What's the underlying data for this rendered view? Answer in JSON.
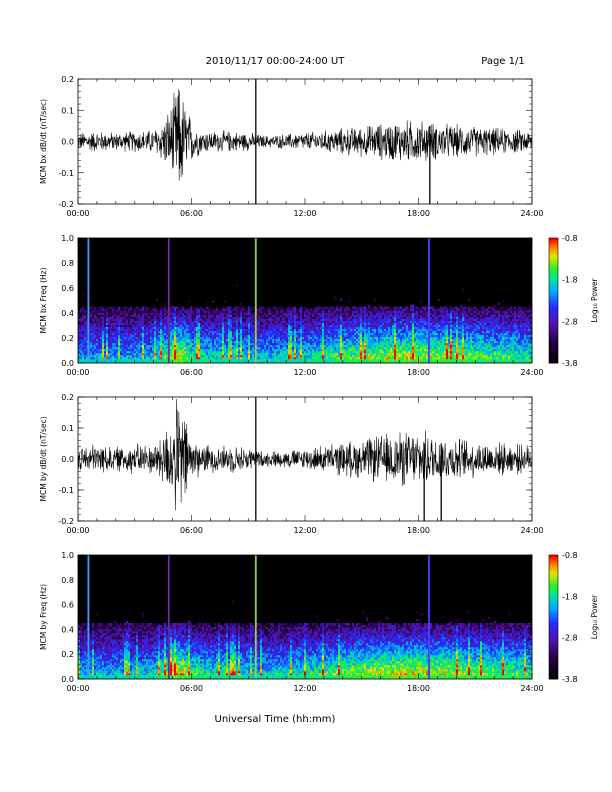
{
  "header": {
    "title": "2010/11/17  00:00-24:00 UT",
    "page": "Page 1/1"
  },
  "chart_data": [
    {
      "type": "line",
      "panel": "bx-waveform",
      "ylabel": "MCM bx dB/dt (nT/sec)",
      "ylim": [
        -0.2,
        0.2
      ],
      "y_ticks": [
        "0.2",
        "0.1",
        "0.0",
        "-0.1",
        "-0.2"
      ],
      "x_ticks": [
        "00:00",
        "06:00",
        "12:00",
        "18:00",
        "24:00"
      ],
      "xlim_hours": [
        0,
        24
      ],
      "series": [
        {
          "hour": [
            0,
            1,
            2,
            3,
            4,
            4.5,
            5,
            5.3,
            5.5,
            6,
            6.5,
            7,
            8,
            9,
            9.4,
            10,
            11,
            12,
            13,
            14,
            15,
            16,
            17,
            18,
            18.5,
            19,
            20,
            21,
            22,
            23,
            24
          ],
          "amplitude": [
            0.03,
            0.035,
            0.03,
            0.035,
            0.04,
            0.07,
            0.13,
            0.2,
            0.16,
            0.07,
            0.04,
            0.035,
            0.035,
            0.03,
            0.025,
            0.02,
            0.025,
            0.03,
            0.035,
            0.045,
            0.05,
            0.06,
            0.07,
            0.07,
            0.065,
            0.06,
            0.055,
            0.05,
            0.045,
            0.04,
            0.035
          ]
        }
      ],
      "spikes": [
        {
          "hour": 9.4,
          "min": -0.2,
          "max": 0.2
        },
        {
          "hour": 18.6,
          "min": -0.2,
          "max": 0.05
        }
      ]
    },
    {
      "type": "heatmap",
      "panel": "bx-spectrogram",
      "ylabel": "MCM bx Freq (Hz)",
      "ylim": [
        0,
        1.0
      ],
      "y_ticks": [
        "1.0",
        "0.8",
        "0.6",
        "0.4",
        "0.2",
        "0.0"
      ],
      "x_ticks": [
        "00:00",
        "06:00",
        "12:00",
        "18:00",
        "24:00"
      ],
      "colorbar": {
        "label": "Log₁₀ Power",
        "ticks": [
          "-0.8",
          "-1.8",
          "-2.8",
          "-3.8"
        ],
        "range": [
          -3.8,
          -0.8
        ]
      },
      "activity_hours": [
        0,
        2,
        4,
        4.5,
        5,
        5.5,
        6,
        7,
        8,
        9,
        10,
        11,
        12,
        13,
        14,
        15,
        16,
        17,
        18,
        19,
        20,
        21,
        22,
        23,
        24
      ],
      "activity_level": [
        0.2,
        0.2,
        0.3,
        0.5,
        0.8,
        0.9,
        0.5,
        0.4,
        0.4,
        0.3,
        0.3,
        0.35,
        0.4,
        0.5,
        0.6,
        0.7,
        0.75,
        0.8,
        0.8,
        0.75,
        0.7,
        0.65,
        0.6,
        0.55,
        0.5
      ],
      "vertical_lines": [
        {
          "hour": 0.55,
          "color": "#3aa0ff",
          "top": 1.0
        },
        {
          "hour": 4.8,
          "color": "#6a2aa0",
          "top": 1.0
        },
        {
          "hour": 9.4,
          "color": "#8cd24a",
          "top": 1.0
        },
        {
          "hour": 18.55,
          "color": "#4040ff",
          "top": 1.0
        }
      ]
    },
    {
      "type": "line",
      "panel": "by-waveform",
      "ylabel": "MCM by dB/dt (nT/sec)",
      "ylim": [
        -0.2,
        0.2
      ],
      "y_ticks": [
        "0.2",
        "0.1",
        "0.0",
        "-0.1",
        "-0.2"
      ],
      "x_ticks": [
        "00:00",
        "06:00",
        "12:00",
        "18:00",
        "24:00"
      ],
      "xlim_hours": [
        0,
        24
      ],
      "series": [
        {
          "hour": [
            0,
            1,
            2,
            3,
            4,
            4.5,
            5,
            5.3,
            5.5,
            6,
            6.5,
            7,
            8,
            9,
            9.4,
            10,
            11,
            12,
            13,
            14,
            15,
            16,
            17,
            18,
            18.5,
            19,
            20,
            21,
            22,
            23,
            24
          ],
          "amplitude": [
            0.04,
            0.05,
            0.04,
            0.05,
            0.05,
            0.09,
            0.15,
            0.2,
            0.18,
            0.08,
            0.05,
            0.045,
            0.045,
            0.04,
            0.03,
            0.025,
            0.03,
            0.035,
            0.045,
            0.055,
            0.065,
            0.08,
            0.09,
            0.09,
            0.085,
            0.08,
            0.07,
            0.06,
            0.055,
            0.05,
            0.045
          ]
        }
      ],
      "spikes": [
        {
          "hour": 9.4,
          "min": -0.2,
          "max": 0.2
        },
        {
          "hour": 18.3,
          "min": -0.2,
          "max": 0.05
        },
        {
          "hour": 19.2,
          "min": -0.2,
          "max": 0.05
        }
      ]
    },
    {
      "type": "heatmap",
      "panel": "by-spectrogram",
      "ylabel": "MCM by Freq (Hz)",
      "ylim": [
        0,
        1.0
      ],
      "y_ticks": [
        "1.0",
        "0.8",
        "0.6",
        "0.4",
        "0.2",
        "0.0"
      ],
      "x_ticks": [
        "00:00",
        "06:00",
        "12:00",
        "18:00",
        "24:00"
      ],
      "colorbar": {
        "label": "Log₁₀ Power",
        "ticks": [
          "-0.8",
          "-1.8",
          "-2.8",
          "-3.8"
        ],
        "range": [
          -3.8,
          -0.8
        ]
      },
      "activity_hours": [
        0,
        2,
        4,
        4.5,
        5,
        5.5,
        6,
        7,
        8,
        9,
        10,
        11,
        12,
        13,
        14,
        15,
        16,
        17,
        18,
        19,
        20,
        21,
        22,
        23,
        24
      ],
      "activity_level": [
        0.25,
        0.25,
        0.35,
        0.55,
        0.85,
        0.9,
        0.55,
        0.45,
        0.45,
        0.35,
        0.35,
        0.4,
        0.45,
        0.55,
        0.65,
        0.75,
        0.8,
        0.85,
        0.85,
        0.8,
        0.75,
        0.7,
        0.65,
        0.6,
        0.55
      ],
      "vertical_lines": [
        {
          "hour": 0.55,
          "color": "#3aa0ff",
          "top": 1.0
        },
        {
          "hour": 4.8,
          "color": "#6a2aa0",
          "top": 1.0
        },
        {
          "hour": 9.4,
          "color": "#8cd24a",
          "top": 1.0
        },
        {
          "hour": 18.55,
          "color": "#4040ff",
          "top": 1.0
        }
      ]
    }
  ],
  "xlabel": "Universal Time (hh:mm)"
}
